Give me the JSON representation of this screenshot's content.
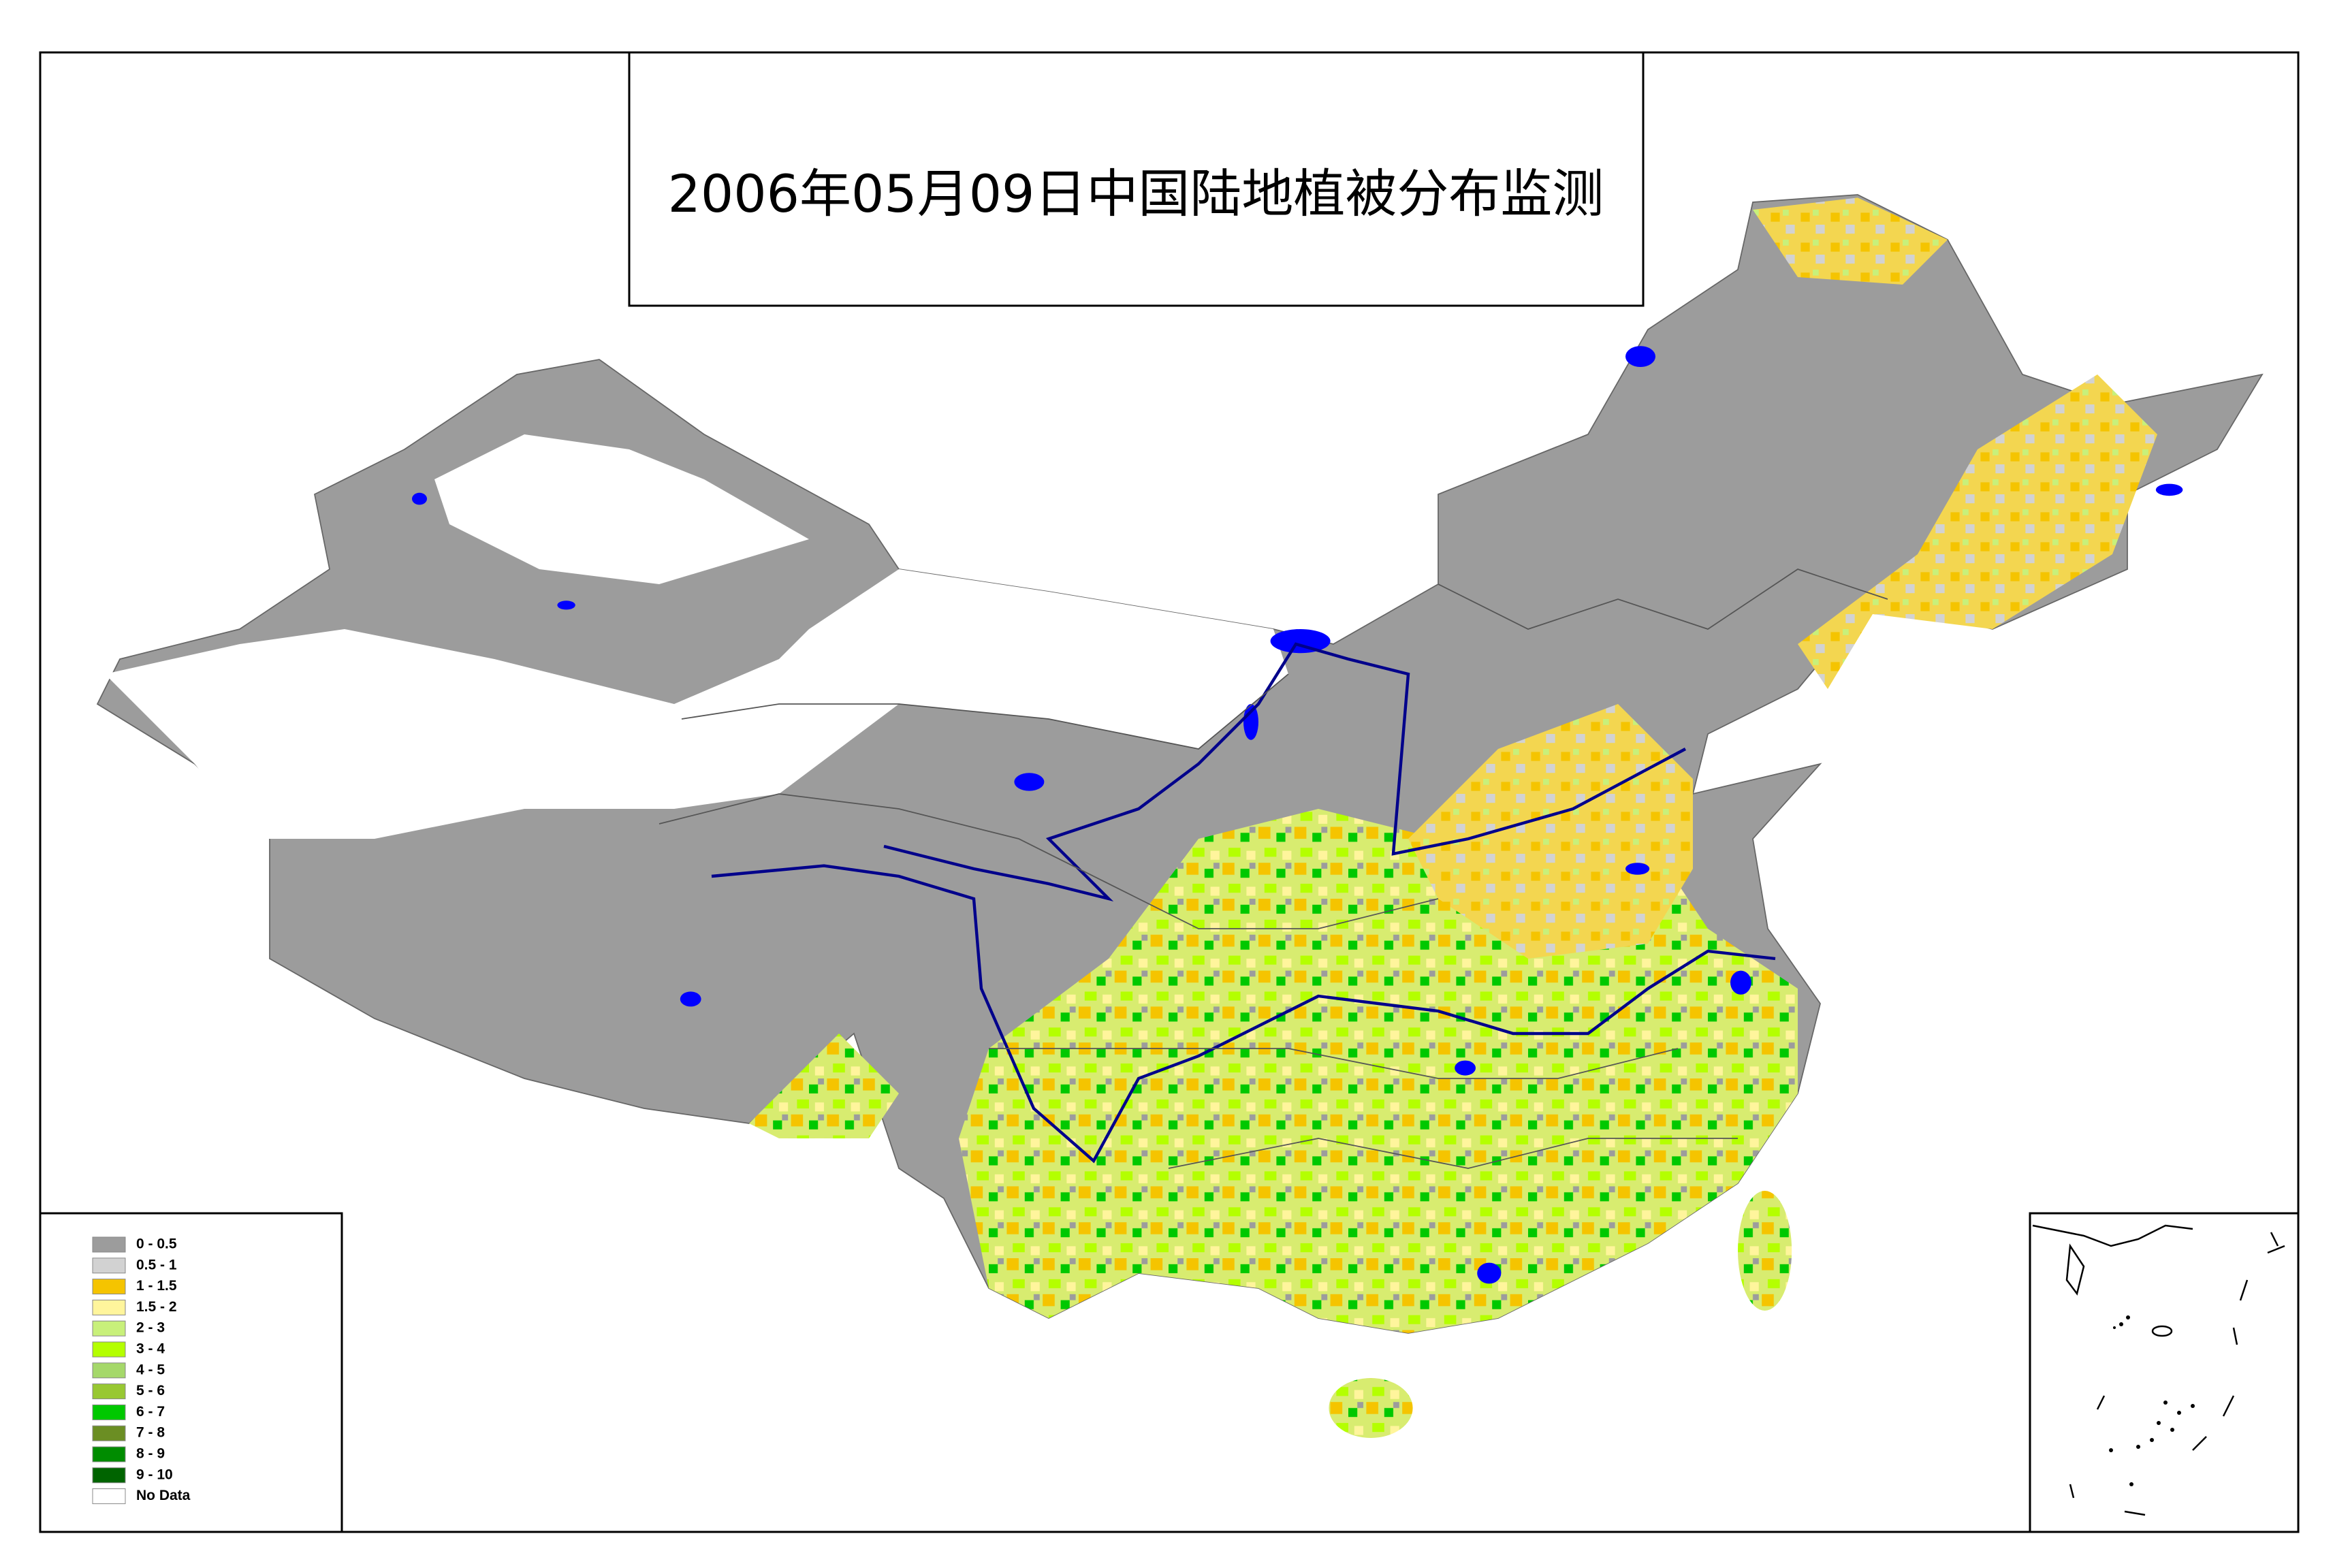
{
  "title": "2006年05月09日中国陆地植被分布监测",
  "legend": {
    "items": [
      {
        "label": "0 - 0.5",
        "color": "#9c9c9c"
      },
      {
        "label": "0.5 - 1",
        "color": "#d2d2d2"
      },
      {
        "label": "1 - 1.5",
        "color": "#f5c400"
      },
      {
        "label": "1.5 - 2",
        "color": "#fff59c"
      },
      {
        "label": "2 - 3",
        "color": "#c8f07a"
      },
      {
        "label": "3 - 4",
        "color": "#b4ff00"
      },
      {
        "label": "4 - 5",
        "color": "#a5d86a"
      },
      {
        "label": "5 - 6",
        "color": "#98c832"
      },
      {
        "label": "6 - 7",
        "color": "#00c800"
      },
      {
        "label": "7 - 8",
        "color": "#6b8e23"
      },
      {
        "label": "8 - 9",
        "color": "#008c00"
      },
      {
        "label": "9 - 10",
        "color": "#006400"
      },
      {
        "label": "No Data",
        "color": "#ffffff"
      }
    ]
  }
}
